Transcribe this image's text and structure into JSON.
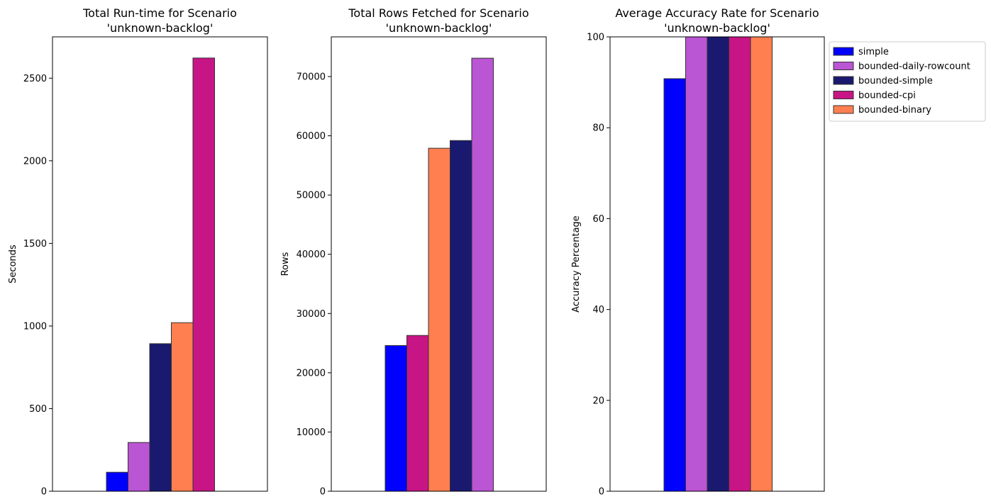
{
  "chart_data": [
    {
      "type": "bar",
      "title_line1": "Total Run-time for Scenario",
      "title_line2": "'unknown-backlog'",
      "xlabel": "",
      "ylabel": "Seconds",
      "ylim": [
        0,
        2750
      ],
      "yticks": [
        0,
        500,
        1000,
        1500,
        2000,
        2500
      ],
      "series": [
        {
          "name": "simple",
          "value": 115,
          "color": "#0000ff"
        },
        {
          "name": "bounded-daily-rowcount",
          "value": 295,
          "color": "#ba55d3"
        },
        {
          "name": "bounded-simple",
          "value": 893,
          "color": "#191970"
        },
        {
          "name": "bounded-binary",
          "value": 1020,
          "color": "#ff7f50"
        },
        {
          "name": "bounded-cpi",
          "value": 2622,
          "color": "#c71585"
        }
      ]
    },
    {
      "type": "bar",
      "title_line1": "Total Rows Fetched for Scenario",
      "title_line2": "'unknown-backlog'",
      "xlabel": "",
      "ylabel": "Rows",
      "ylim": [
        0,
        76700
      ],
      "yticks": [
        0,
        10000,
        20000,
        30000,
        40000,
        50000,
        60000,
        70000
      ],
      "series": [
        {
          "name": "simple",
          "value": 24600,
          "color": "#0000ff"
        },
        {
          "name": "bounded-cpi",
          "value": 26300,
          "color": "#c71585"
        },
        {
          "name": "bounded-binary",
          "value": 57900,
          "color": "#ff7f50"
        },
        {
          "name": "bounded-simple",
          "value": 59200,
          "color": "#191970"
        },
        {
          "name": "bounded-daily-rowcount",
          "value": 73100,
          "color": "#ba55d3"
        }
      ]
    },
    {
      "type": "bar",
      "title_line1": "Average Accuracy Rate for Scenario",
      "title_line2": "'unknown-backlog'",
      "xlabel": "",
      "ylabel": "Accuracy Percentage",
      "ylim": [
        0,
        100
      ],
      "yticks": [
        0,
        20,
        40,
        60,
        80,
        100
      ],
      "series": [
        {
          "name": "simple",
          "value": 90.8,
          "color": "#0000ff"
        },
        {
          "name": "bounded-daily-rowcount",
          "value": 100,
          "color": "#ba55d3"
        },
        {
          "name": "bounded-simple",
          "value": 100,
          "color": "#191970"
        },
        {
          "name": "bounded-cpi",
          "value": 100,
          "color": "#c71585"
        },
        {
          "name": "bounded-binary",
          "value": 100,
          "color": "#ff7f50"
        }
      ],
      "legend": {
        "placement": "outside-right",
        "entries": [
          {
            "name": "simple",
            "color": "#0000ff"
          },
          {
            "name": "bounded-daily-rowcount",
            "color": "#ba55d3"
          },
          {
            "name": "bounded-simple",
            "color": "#191970"
          },
          {
            "name": "bounded-cpi",
            "color": "#c71585"
          },
          {
            "name": "bounded-binary",
            "color": "#ff7f50"
          }
        ]
      }
    }
  ]
}
